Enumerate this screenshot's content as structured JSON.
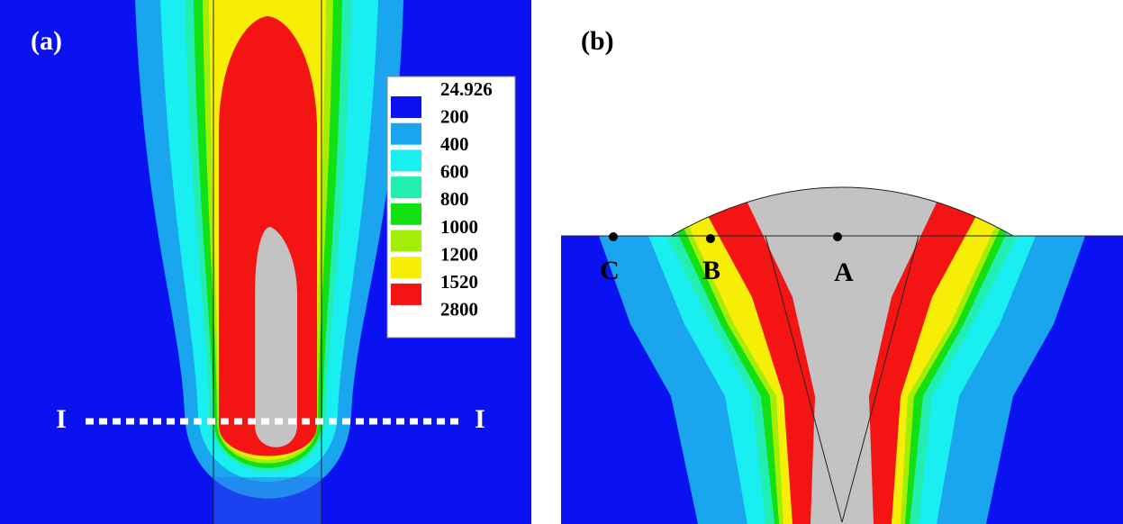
{
  "panel_a": {
    "label": "(a)",
    "section_labels": [
      "I",
      "I"
    ]
  },
  "panel_b": {
    "label": "(b)",
    "points": [
      "A",
      "B",
      "C"
    ]
  },
  "legend": {
    "labels": [
      "24.926",
      "200",
      "400",
      "600",
      "800",
      "1000",
      "1200",
      "1520",
      "2800"
    ],
    "colors": [
      "#0a12f2",
      "#1aa6ee",
      "#19eef0",
      "#22eeb2",
      "#12e012",
      "#a2ee08",
      "#f6ee06",
      "#f41414"
    ]
  }
}
